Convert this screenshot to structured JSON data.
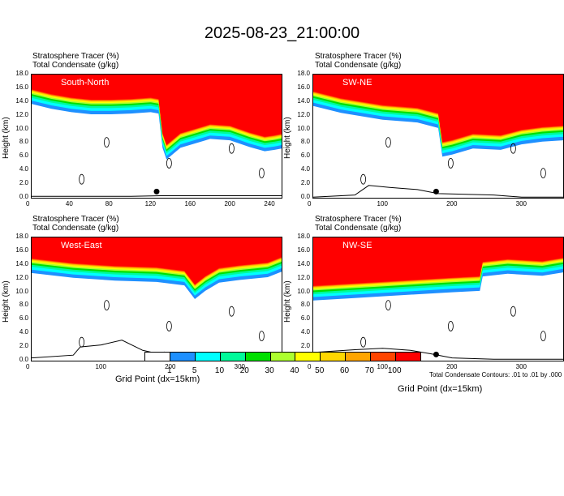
{
  "title": "2025-08-23_21:00:00",
  "header_lines": [
    "Stratosphere Tracer   (%)",
    "Total Condensate   (g/kg)"
  ],
  "y_axis_label": "Height (km)",
  "x_axis_label": "Grid Point (dx=15km)",
  "contour_note": "Total Condensate Contours: .01 to .01 by .000",
  "colorbar": {
    "labels": [
      "1",
      "5",
      "10",
      "20",
      "30",
      "40",
      "50",
      "60",
      "70",
      "100"
    ],
    "colors": [
      "#ffffff",
      "#1e90ff",
      "#00ffff",
      "#00fa9a",
      "#00e000",
      "#adff2f",
      "#ffff00",
      "#ffd700",
      "#ffa500",
      "#ff4500",
      "#ff0000"
    ]
  },
  "chart_data": [
    {
      "type": "heatmap",
      "name": "South-North",
      "xlim": [
        0,
        252
      ],
      "ylim": [
        0,
        18
      ],
      "xticks": [
        0,
        40,
        80,
        120,
        160,
        200,
        240
      ],
      "yticks": [
        "0.0",
        "2.0",
        "4.0",
        "6.0",
        "8.0",
        "10.0",
        "12.0",
        "14.0",
        "16.0",
        "18.0"
      ],
      "tropopause_km": [
        [
          0,
          15.9
        ],
        [
          20,
          15.2
        ],
        [
          40,
          14.7
        ],
        [
          60,
          14.4
        ],
        [
          80,
          14.4
        ],
        [
          100,
          14.5
        ],
        [
          120,
          14.7
        ],
        [
          128,
          14.5
        ],
        [
          132,
          9.5
        ],
        [
          136,
          7.8
        ],
        [
          150,
          9.5
        ],
        [
          180,
          10.8
        ],
        [
          200,
          10.6
        ],
        [
          220,
          9.6
        ],
        [
          235,
          9.0
        ],
        [
          245,
          9.2
        ],
        [
          252,
          9.4
        ]
      ],
      "terrain_km": [
        [
          0,
          0.2
        ],
        [
          100,
          0.2
        ],
        [
          130,
          0.3
        ],
        [
          252,
          0.3
        ]
      ],
      "marker_x": 126
    },
    {
      "type": "heatmap",
      "name": "SW-NE",
      "xlim": [
        0,
        360
      ],
      "ylim": [
        0,
        18
      ],
      "xticks": [
        0,
        100,
        200,
        300
      ],
      "yticks": [
        "0.0",
        "2.0",
        "4.0",
        "6.0",
        "8.0",
        "10.0",
        "12.0",
        "14.0",
        "16.0",
        "18.0"
      ],
      "tropopause_km": [
        [
          0,
          15.6
        ],
        [
          40,
          14.6
        ],
        [
          100,
          13.6
        ],
        [
          150,
          13.2
        ],
        [
          180,
          12.4
        ],
        [
          186,
          8.2
        ],
        [
          200,
          8.5
        ],
        [
          230,
          9.4
        ],
        [
          270,
          9.2
        ],
        [
          300,
          10.0
        ],
        [
          330,
          10.4
        ],
        [
          360,
          10.6
        ]
      ],
      "terrain_km": [
        [
          0,
          0.1
        ],
        [
          60,
          0.4
        ],
        [
          80,
          1.8
        ],
        [
          110,
          1.5
        ],
        [
          150,
          1.2
        ],
        [
          180,
          0.6
        ],
        [
          260,
          0.4
        ],
        [
          300,
          0.1
        ],
        [
          360,
          0.1
        ]
      ],
      "marker_x": 177
    },
    {
      "type": "heatmap",
      "name": "West-East",
      "xlim": [
        0,
        360
      ],
      "ylim": [
        0,
        18
      ],
      "xticks": [
        0,
        100,
        200,
        300
      ],
      "yticks": [
        "0.0",
        "2.0",
        "4.0",
        "6.0",
        "8.0",
        "10.0",
        "12.0",
        "14.0",
        "16.0",
        "18.0"
      ],
      "tropopause_km": [
        [
          0,
          15.0
        ],
        [
          60,
          14.3
        ],
        [
          120,
          13.9
        ],
        [
          180,
          13.7
        ],
        [
          220,
          13.2
        ],
        [
          235,
          11.2
        ],
        [
          250,
          12.4
        ],
        [
          270,
          13.6
        ],
        [
          300,
          14.0
        ],
        [
          340,
          14.4
        ],
        [
          360,
          15.2
        ]
      ],
      "terrain_km": [
        [
          0,
          0.4
        ],
        [
          60,
          0.8
        ],
        [
          70,
          2.0
        ],
        [
          100,
          2.3
        ],
        [
          130,
          3.0
        ],
        [
          160,
          1.5
        ],
        [
          200,
          0.6
        ],
        [
          260,
          0.4
        ],
        [
          300,
          0.2
        ],
        [
          360,
          0.2
        ]
      ],
      "marker_x": 191
    },
    {
      "type": "heatmap",
      "name": "NW-SE",
      "xlim": [
        0,
        360
      ],
      "ylim": [
        0,
        18
      ],
      "xticks": [
        0,
        100,
        200,
        300
      ],
      "yticks": [
        "0.0",
        "2.0",
        "4.0",
        "6.0",
        "8.0",
        "10.0",
        "12.0",
        "14.0",
        "16.0",
        "18.0"
      ],
      "tropopause_km": [
        [
          0,
          11.0
        ],
        [
          50,
          11.3
        ],
        [
          100,
          11.6
        ],
        [
          150,
          11.9
        ],
        [
          200,
          12.2
        ],
        [
          240,
          12.4
        ],
        [
          244,
          14.5
        ],
        [
          280,
          14.9
        ],
        [
          330,
          14.6
        ],
        [
          360,
          15.1
        ]
      ],
      "terrain_km": [
        [
          0,
          1.2
        ],
        [
          60,
          1.6
        ],
        [
          100,
          1.8
        ],
        [
          140,
          1.5
        ],
        [
          170,
          1.0
        ],
        [
          200,
          0.4
        ],
        [
          260,
          0.2
        ],
        [
          360,
          0.2
        ]
      ],
      "marker_x": 177
    }
  ]
}
